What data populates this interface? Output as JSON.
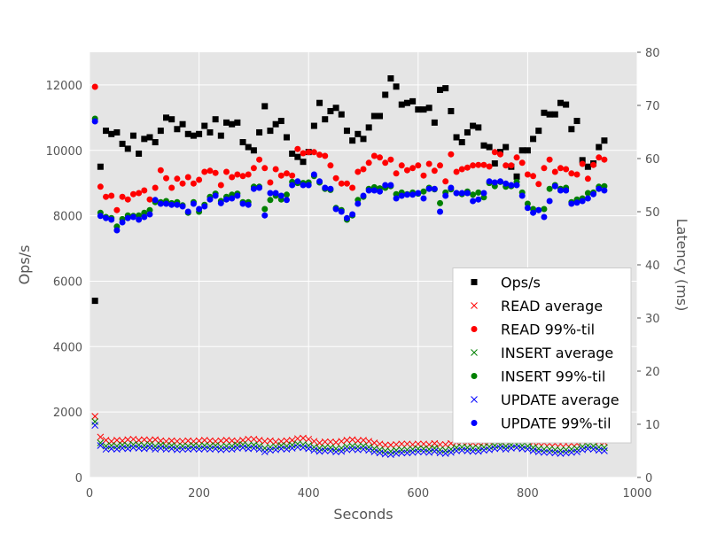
{
  "chart_data": {
    "type": "scatter",
    "xlabel": "Seconds",
    "ylabel": "Ops/s",
    "y2label": "Latency (ms)",
    "xlim": [
      0,
      1000
    ],
    "xticks": [
      0,
      200,
      400,
      600,
      800,
      1000
    ],
    "ylim": [
      0,
      13000
    ],
    "yticks": [
      0,
      2000,
      4000,
      6000,
      8000,
      10000,
      12000
    ],
    "y2lim": [
      0,
      80
    ],
    "y2ticks": [
      0,
      10,
      20,
      30,
      40,
      50,
      60,
      70,
      80
    ],
    "grid": true,
    "legend": "lower right",
    "x": [
      10,
      20,
      30,
      40,
      50,
      60,
      70,
      80,
      90,
      100,
      110,
      120,
      130,
      140,
      150,
      160,
      170,
      180,
      190,
      200,
      210,
      220,
      230,
      240,
      250,
      260,
      270,
      280,
      290,
      300,
      310,
      320,
      330,
      340,
      350,
      360,
      370,
      380,
      390,
      400,
      410,
      420,
      430,
      440,
      450,
      460,
      470,
      480,
      490,
      500,
      510,
      520,
      530,
      540,
      550,
      560,
      570,
      580,
      590,
      600,
      610,
      620,
      630,
      640,
      650,
      660,
      670,
      680,
      690,
      700,
      710,
      720,
      730,
      740,
      750,
      760,
      770,
      780,
      790,
      800,
      810,
      820,
      830,
      840,
      850,
      860,
      870,
      880,
      890,
      900,
      910,
      920,
      930,
      940
    ],
    "series": [
      {
        "name": "Ops/s",
        "color": "#000000",
        "marker": "s",
        "axis": "y",
        "values": [
          5400,
          9500,
          10600,
          10500,
          10550,
          10200,
          10050,
          10450,
          9900,
          10350,
          10400,
          10250,
          10600,
          11000,
          10950,
          10650,
          10800,
          10500,
          10450,
          10500,
          10750,
          10550,
          10950,
          10450,
          10850,
          10800,
          10850,
          10250,
          10100,
          10000,
          10550,
          11350,
          10600,
          10800,
          10900,
          10400,
          9900,
          9800,
          9650,
          9950,
          10750,
          11450,
          10950,
          11200,
          11300,
          11100,
          10600,
          10300,
          10500,
          10350,
          10700,
          11050,
          11050,
          11700,
          12200,
          11950,
          11400,
          11450,
          11500,
          11250,
          11250,
          11300,
          10850,
          11850,
          11900,
          11200,
          10400,
          10250,
          10550,
          10750,
          10700,
          10150,
          10100,
          9600,
          9950,
          10100,
          9500,
          9200,
          10000,
          10000,
          10350,
          10600,
          11150,
          11100,
          11100,
          11450,
          11400,
          10650,
          10900,
          9700,
          9500,
          9600,
          10100,
          10300
        ]
      },
      {
        "name": "READ average",
        "color": "#ff0000",
        "marker": "x",
        "axis": "y2",
        "values": [
          11.5,
          7.6,
          7,
          6.8,
          7,
          6.9,
          7.1,
          7.2,
          7,
          7.1,
          7,
          7.1,
          6.9,
          6.8,
          6.9,
          6.8,
          6.8,
          6.9,
          6.8,
          6.9,
          7,
          6.9,
          6.8,
          6.9,
          7,
          6.9,
          6.8,
          7,
          7.2,
          7.2,
          7,
          6.8,
          6.9,
          6.7,
          6.8,
          6.9,
          7,
          7.3,
          7.4,
          7.2,
          6.8,
          6.5,
          6.7,
          6.7,
          6.6,
          6.8,
          7,
          7.1,
          6.9,
          7,
          6.8,
          6.5,
          6.3,
          6.1,
          6.1,
          6.2,
          6.3,
          6.3,
          6.2,
          6.3,
          6.3,
          6.2,
          6.4,
          6.2,
          6.2,
          6.4,
          6.6,
          6.7,
          6.6,
          6.5,
          6.5,
          6.6,
          6.7,
          6.9,
          7,
          6.8,
          7,
          7.1,
          7,
          6.9,
          6.6,
          6.5,
          6.5,
          6.4,
          6.4,
          6.3,
          6.3,
          6.4,
          6.4,
          6.8,
          7,
          6.9,
          6.7,
          6.6
        ]
      },
      {
        "name": "READ 99%-til",
        "color": "#ff0000",
        "marker": "o",
        "axis": "y2",
        "values": [
          73.5,
          54.7,
          52.8,
          53,
          50.3,
          52.8,
          52.3,
          53.3,
          53.5,
          54,
          52.3,
          54.5,
          57.8,
          56.3,
          54.5,
          56.2,
          55.3,
          56.5,
          55.3,
          56,
          57.5,
          57.7,
          57.3,
          55,
          57.5,
          56.5,
          57,
          56.7,
          57,
          58.2,
          59.8,
          58.2,
          55.5,
          58,
          56.8,
          57.2,
          56.8,
          61.8,
          61,
          61.2,
          61.2,
          60.7,
          60.5,
          58.7,
          56.3,
          55.3,
          55.3,
          54.5,
          57.5,
          58,
          59.2,
          60.5,
          60.2,
          59.2,
          59.8,
          57.2,
          58.7,
          57.8,
          58.2,
          58.7,
          56.8,
          59,
          57.7,
          58.7,
          55.7,
          60.8,
          57.5,
          58,
          58.3,
          58.7,
          58.8,
          58.8,
          58.5,
          61.2,
          60.8,
          58.7,
          58.7,
          60.2,
          59.2,
          57,
          56.7,
          55.2,
          58.2,
          59.8,
          57.5,
          58.2,
          58,
          57.2,
          57,
          59,
          56.2,
          58.8,
          60.2,
          59.8
        ]
      },
      {
        "name": "INSERT average",
        "color": "#008000",
        "marker": "x",
        "axis": "y2",
        "values": [
          10.5,
          6.5,
          5.9,
          6,
          5.9,
          6.1,
          6,
          6.2,
          6.1,
          6,
          6.2,
          5.9,
          6.1,
          5.9,
          6,
          5.8,
          5.9,
          5.9,
          6,
          5.9,
          6,
          5.9,
          6,
          5.8,
          5.9,
          5.9,
          6.1,
          6.2,
          6,
          6.1,
          5.9,
          5.5,
          5.7,
          5.8,
          6,
          5.9,
          6.1,
          6.3,
          6.2,
          6,
          5.7,
          5.5,
          5.6,
          5.6,
          5.4,
          5.5,
          5.8,
          5.9,
          5.8,
          5.9,
          5.7,
          5.4,
          5.2,
          5,
          4.9,
          5.1,
          5.2,
          5.2,
          5.3,
          5.4,
          5.4,
          5.3,
          5.5,
          5.2,
          5.1,
          5.3,
          5.6,
          5.7,
          5.6,
          5.5,
          5.5,
          5.7,
          5.8,
          6,
          6.1,
          5.9,
          6.1,
          6.2,
          6,
          5.9,
          5.6,
          5.4,
          5.3,
          5.3,
          5.2,
          5.1,
          5.2,
          5.3,
          5.4,
          5.8,
          6,
          5.9,
          5.7,
          5.6
        ]
      },
      {
        "name": "INSERT 99%-til",
        "color": "#008000",
        "marker": "o",
        "axis": "y2",
        "values": [
          67.5,
          49.8,
          49,
          48.8,
          47.2,
          48.6,
          49.3,
          49.2,
          49.3,
          49.8,
          50.3,
          51.8,
          51.8,
          52,
          51.6,
          51.8,
          51.2,
          49.8,
          51.8,
          50,
          51.3,
          52.8,
          53.4,
          52,
          52.8,
          53.2,
          53.4,
          51.8,
          51.8,
          54.7,
          54.7,
          50.5,
          52.2,
          53,
          52.3,
          53.2,
          55.6,
          55.4,
          55.4,
          55.5,
          56.7,
          55.5,
          54.3,
          54.1,
          50.7,
          50.3,
          48.5,
          49.3,
          52.2,
          52.8,
          54.3,
          54.6,
          54.4,
          54.5,
          54.8,
          53.3,
          53.6,
          53.3,
          53.6,
          53.4,
          53.8,
          54.5,
          54.2,
          51.6,
          53.6,
          54.2,
          53.5,
          53.3,
          53.8,
          53.2,
          53.6,
          52.7,
          55.4,
          54.8,
          55.6,
          54.7,
          54.8,
          55.6,
          53.6,
          51.5,
          50.5,
          50.3,
          50.5,
          54.3,
          55,
          54.3,
          54.5,
          51.8,
          52.3,
          52.5,
          53.5,
          53.6,
          54.7,
          54.8
        ]
      },
      {
        "name": "UPDATE average",
        "color": "#0000ff",
        "marker": "x",
        "axis": "y2",
        "values": [
          9.8,
          6,
          5.3,
          5.4,
          5.3,
          5.5,
          5.4,
          5.6,
          5.5,
          5.4,
          5.6,
          5.3,
          5.5,
          5.3,
          5.4,
          5.2,
          5.3,
          5.3,
          5.4,
          5.3,
          5.4,
          5.3,
          5.4,
          5.2,
          5.3,
          5.3,
          5.5,
          5.6,
          5.4,
          5.5,
          5.3,
          4.8,
          5.1,
          5.2,
          5.4,
          5.3,
          5.5,
          5.7,
          5.6,
          5.4,
          5.1,
          4.9,
          5,
          5,
          4.8,
          4.9,
          5.2,
          5.3,
          5.2,
          5.3,
          5.1,
          4.8,
          4.6,
          4.4,
          4.3,
          4.5,
          4.6,
          4.6,
          4.7,
          4.8,
          4.8,
          4.7,
          4.9,
          4.6,
          4.5,
          4.7,
          5,
          5.1,
          5,
          4.9,
          4.9,
          5.1,
          5.2,
          5.4,
          5.5,
          5.3,
          5.5,
          5.6,
          5.4,
          5.3,
          5,
          4.8,
          4.7,
          4.7,
          4.6,
          4.5,
          4.6,
          4.7,
          4.8,
          5.2,
          5.4,
          5.3,
          5.1,
          5
        ]
      },
      {
        "name": "UPDATE 99%-til",
        "color": "#0000ff",
        "marker": "o",
        "axis": "y2",
        "values": [
          67,
          49.2,
          48.8,
          48.5,
          46.5,
          48,
          48.8,
          49,
          48.5,
          49,
          49.5,
          52.2,
          51.5,
          51.5,
          51.3,
          51.3,
          51,
          50,
          51.5,
          50.5,
          51,
          52.3,
          53,
          51.6,
          52.3,
          52.5,
          53,
          51.5,
          51.3,
          54.3,
          54.5,
          49.3,
          53.5,
          53.5,
          53,
          52.2,
          55,
          55.7,
          55,
          55,
          57,
          55.7,
          54.5,
          54.3,
          50.5,
          50,
          48.8,
          49.5,
          51.5,
          53,
          54,
          54,
          53.8,
          55,
          55,
          52.5,
          53,
          53.2,
          53.2,
          53.5,
          52.5,
          54.3,
          54.3,
          50,
          53,
          54.5,
          53.5,
          53.5,
          53.5,
          52,
          52.3,
          53.5,
          55.7,
          55.5,
          55.7,
          55.3,
          55,
          55,
          53,
          50.7,
          49.8,
          50.3,
          49,
          52,
          54.8,
          54,
          54,
          51.5,
          51.7,
          52,
          52.5,
          53.3,
          54.3,
          54
        ]
      }
    ]
  }
}
